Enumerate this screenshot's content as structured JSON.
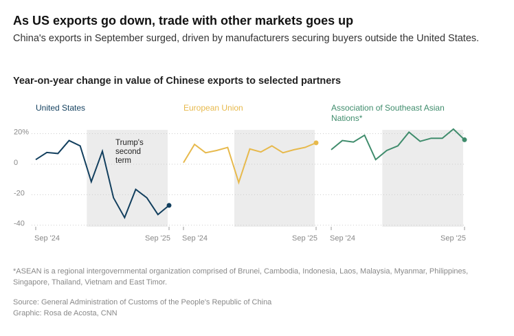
{
  "title": "As US exports go down, trade with other markets goes up",
  "subtitle": "China's exports in September surged, driven by manufacturers securing buyers outside the United States.",
  "section_title": "Year-on-year change in value of Chinese exports to selected partners",
  "footnote": "*ASEAN is a regional intergovernmental organization comprised of Brunei, Cambodia, Indonesia, Laos, Malaysia, Myanmar, Philippines, Singapore, Thailand, Vietnam and East Timor.",
  "source": "Source: General Administration of Customs of the People's Republic of China",
  "credit": "Graphic: Rosa de Acosta, CNN",
  "chart_data": [
    {
      "type": "line",
      "title": "United States",
      "color": "#123f5e",
      "categories": [
        "Sep '24",
        null,
        null,
        null,
        null,
        null,
        null,
        null,
        null,
        null,
        null,
        null,
        "Sep '25"
      ],
      "values": [
        3,
        7.7,
        7,
        15.5,
        12,
        -11.5,
        8.5,
        -22,
        -35,
        -16.5,
        -22,
        -33,
        -27
      ],
      "ylim": [
        -41,
        22.5
      ],
      "yticks": [
        {
          "value": 20,
          "label": "20%"
        },
        0,
        -20,
        -40
      ],
      "grid": true,
      "highlight": {
        "from": 4.6,
        "to": 12,
        "label": "Trump's second term"
      }
    },
    {
      "type": "line",
      "title": "European Union",
      "color": "#e7b94c",
      "categories": [
        "Sep '24",
        null,
        null,
        null,
        null,
        null,
        null,
        null,
        null,
        null,
        null,
        null,
        "Sep '25"
      ],
      "values": [
        1,
        13,
        7.5,
        9,
        11,
        -12,
        10,
        8,
        12,
        7.5,
        9.5,
        11,
        14
      ],
      "ylim": [
        -41,
        22.5
      ],
      "highlight": {
        "from": 4.6,
        "to": 12
      }
    },
    {
      "type": "line",
      "title": "Association of Southeast Asian Nations*",
      "color": "#3f8c6c",
      "categories": [
        "Sep '24",
        null,
        null,
        null,
        null,
        null,
        null,
        null,
        null,
        null,
        null,
        null,
        "Sep '25"
      ],
      "values": [
        9.5,
        15.5,
        14.5,
        19,
        3,
        9,
        12,
        21,
        15,
        17,
        17,
        23,
        16
      ],
      "ylim": [
        -41,
        22.5
      ],
      "highlight": {
        "from": 4.6,
        "to": 12
      }
    }
  ]
}
